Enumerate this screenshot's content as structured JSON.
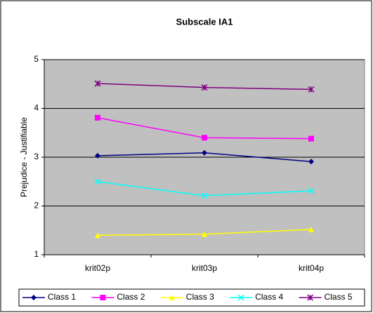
{
  "chart_data": {
    "type": "line",
    "title": "Subscale IA1",
    "ylabel": "Prejudice - Justifiable",
    "categories": [
      "krit02p",
      "krit03p",
      "krit04p"
    ],
    "series": [
      {
        "name": "Class 1",
        "color": "#000080",
        "marker": "diamond",
        "values": [
          3.03,
          3.09,
          2.91
        ]
      },
      {
        "name": "Class 2",
        "color": "#ff00ff",
        "marker": "square",
        "values": [
          3.81,
          3.4,
          3.38
        ]
      },
      {
        "name": "Class 3",
        "color": "#ffff00",
        "marker": "triangle",
        "values": [
          1.4,
          1.42,
          1.52
        ]
      },
      {
        "name": "Class 4",
        "color": "#00ffff",
        "marker": "x",
        "values": [
          2.5,
          2.21,
          2.31
        ]
      },
      {
        "name": "Class 5",
        "color": "#800080",
        "marker": "star",
        "values": [
          4.51,
          4.43,
          4.39
        ]
      }
    ],
    "ylim": [
      1,
      5
    ],
    "yticks": [
      1,
      2,
      3,
      4,
      5
    ],
    "grid": true,
    "legend": "bottom"
  }
}
